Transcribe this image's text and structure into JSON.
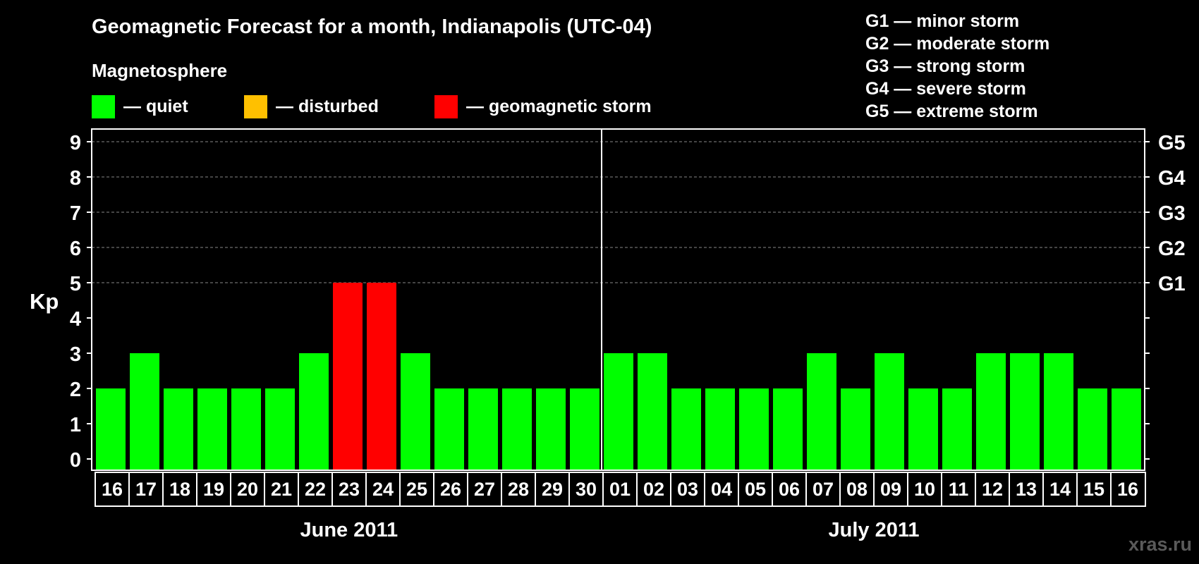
{
  "chart_data": {
    "type": "bar",
    "title": "Geomagnetic Forecast for a month, Indianapolis (UTC-04)",
    "ylabel": "Kp",
    "ylim": [
      0,
      9
    ],
    "yticks": [
      "0",
      "1",
      "2",
      "3",
      "4",
      "5",
      "6",
      "7",
      "8",
      "9"
    ],
    "right_axis": [
      {
        "kp": 5,
        "label": "G1"
      },
      {
        "kp": 6,
        "label": "G2"
      },
      {
        "kp": 7,
        "label": "G3"
      },
      {
        "kp": 8,
        "label": "G4"
      },
      {
        "kp": 9,
        "label": "G5"
      }
    ],
    "categories": [
      "16",
      "17",
      "18",
      "19",
      "20",
      "21",
      "22",
      "23",
      "24",
      "25",
      "26",
      "27",
      "28",
      "29",
      "30",
      "01",
      "02",
      "03",
      "04",
      "05",
      "06",
      "07",
      "08",
      "09",
      "10",
      "11",
      "12",
      "13",
      "14",
      "15",
      "16"
    ],
    "values": [
      2,
      3,
      2,
      2,
      2,
      2,
      3,
      5,
      5,
      3,
      2,
      2,
      2,
      2,
      2,
      3,
      3,
      2,
      2,
      2,
      2,
      3,
      2,
      3,
      2,
      2,
      3,
      3,
      3,
      2,
      2
    ],
    "months": [
      {
        "label": "June 2011",
        "start_index": 0,
        "end_index": 14
      },
      {
        "label": "July 2011",
        "start_index": 15,
        "end_index": 30
      }
    ],
    "grid": true
  },
  "header": {
    "title": "Geomagnetic Forecast for a month, Indianapolis (UTC-04)",
    "magnetosphere_label": "Magnetosphere"
  },
  "legend": [
    {
      "label": "— quiet",
      "color": "#00ff00"
    },
    {
      "label": "— disturbed",
      "color": "#ffc000"
    },
    {
      "label": "— geomagnetic storm",
      "color": "#ff0000"
    }
  ],
  "storm_scale": [
    "G1 — minor storm",
    "G2 — moderate storm",
    "G3 — strong storm",
    "G4 — severe storm",
    "G5 — extreme storm"
  ],
  "axis": {
    "kp_label": "Kp"
  },
  "colors": {
    "quiet": "#00ff00",
    "disturbed": "#ffc000",
    "storm": "#ff0000",
    "grid": "#888888"
  },
  "watermark": "xras.ru"
}
